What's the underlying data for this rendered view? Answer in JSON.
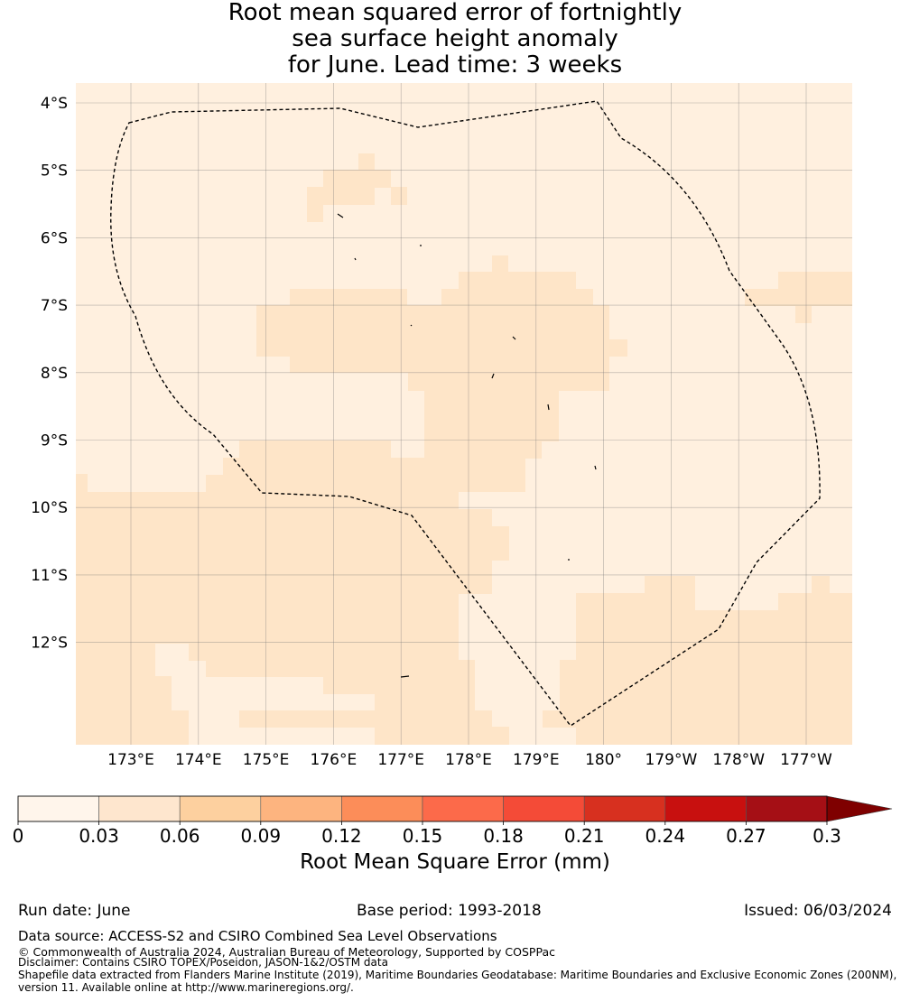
{
  "title": {
    "line1": "Root mean squared error of fortnightly",
    "line2": "sea surface height anomaly",
    "line3": "for June. Lead time: 3 weeks"
  },
  "map": {
    "lat_ticks": [
      "4°S",
      "5°S",
      "6°S",
      "7°S",
      "8°S",
      "9°S",
      "10°S",
      "11°S",
      "12°S"
    ],
    "lon_ticks": [
      "173°E",
      "174°E",
      "175°E",
      "176°E",
      "177°E",
      "178°E",
      "179°E",
      "180°",
      "179°W",
      "178°W",
      "177°W"
    ],
    "field_colors": {
      "bin1": "#fff0df",
      "bin2": "#fee5c8"
    }
  },
  "colorbar": {
    "ticks": [
      "0",
      "0.03",
      "0.06",
      "0.09",
      "0.12",
      "0.15",
      "0.18",
      "0.21",
      "0.24",
      "0.27",
      "0.3"
    ],
    "colors": [
      "#fff5eb",
      "#fee6ce",
      "#fdd09f",
      "#fdb47f",
      "#fc8d59",
      "#fc6a4a",
      "#f44b37",
      "#d7301f",
      "#c8100f",
      "#a50f15",
      "#7f0000"
    ],
    "label": "Root Mean Square Error (mm)"
  },
  "footer": {
    "run_date": "Run date: June",
    "base_period": "Base period: 1993-2018",
    "issued": "Issued: 06/03/2024",
    "data_source": "Data source: ACCESS-S2 and CSIRO Combined Sea Level Observations",
    "copyright": "© Commonwealth of Australia 2024, Australian Bureau of Meteorology, Supported by COSPPac",
    "disclaimer": "Disclaimer: Contains CSIRO TOPEX/Poseidon, JASON-1&2/OSTM data",
    "shapefile_1": "Shapefile data extracted from Flanders Marine Institute (2019), Maritime Boundaries Geodatabase: Maritime Boundaries and Exclusive Economic Zones (200NM),",
    "shapefile_2": "version 11. Available online at http://www.marineregions.org/."
  }
}
